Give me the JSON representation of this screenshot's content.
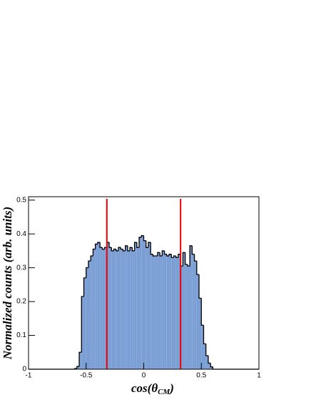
{
  "chart_data": {
    "type": "histogram",
    "x_label": {
      "main": "cos(θ",
      "sub": "CM",
      "close": ")"
    },
    "y_label": "Normalized counts (arb. units)",
    "bins": [
      -1,
      -0.98,
      -0.96,
      -0.94,
      -0.92,
      -0.9,
      -0.88,
      -0.86,
      -0.84,
      -0.82,
      -0.8,
      -0.78,
      -0.76,
      -0.74,
      -0.72,
      -0.7,
      -0.68,
      -0.66,
      -0.64,
      -0.62,
      -0.6,
      -0.58,
      -0.56,
      -0.54,
      -0.52,
      -0.5,
      -0.48,
      -0.46,
      -0.44,
      -0.42,
      -0.4,
      -0.38,
      -0.36,
      -0.34,
      -0.32,
      -0.3,
      -0.28,
      -0.26,
      -0.24,
      -0.22,
      -0.2,
      -0.18,
      -0.16,
      -0.14,
      -0.12,
      -0.1,
      -0.08,
      -0.06,
      -0.04,
      -0.02,
      0,
      0.02,
      0.04,
      0.06,
      0.08,
      0.1,
      0.12,
      0.14,
      0.16,
      0.18,
      0.2,
      0.22,
      0.24,
      0.26,
      0.28,
      0.3,
      0.32,
      0.34,
      0.36,
      0.38,
      0.4,
      0.42,
      0.44,
      0.46,
      0.48,
      0.5,
      0.52,
      0.54,
      0.56,
      0.58,
      0.6,
      0.62,
      0.64,
      0.66,
      0.68,
      0.7,
      0.72,
      0.74,
      0.76,
      0.78,
      0.8,
      0.82,
      0.84,
      0.86,
      0.88,
      0.9,
      0.92,
      0.94,
      0.96,
      0.98,
      1
    ],
    "values": [
      0,
      0,
      0,
      0,
      0,
      0,
      0,
      0,
      0,
      0,
      0,
      0,
      0,
      0,
      0,
      0,
      0,
      0,
      0,
      0,
      0.002,
      0.008,
      0.05,
      0.215,
      0.27,
      0.3,
      0.32,
      0.335,
      0.355,
      0.37,
      0.375,
      0.36,
      0.355,
      0.36,
      0.375,
      0.36,
      0.35,
      0.355,
      0.35,
      0.36,
      0.355,
      0.35,
      0.365,
      0.35,
      0.36,
      0.35,
      0.375,
      0.36,
      0.39,
      0.395,
      0.38,
      0.36,
      0.375,
      0.34,
      0.335,
      0.335,
      0.345,
      0.335,
      0.35,
      0.34,
      0.335,
      0.34,
      0.33,
      0.335,
      0.33,
      0.34,
      0.305,
      0.345,
      0.31,
      0.305,
      0.365,
      0.34,
      0.32,
      0.28,
      0.21,
      0.13,
      0.075,
      0.04,
      0.018,
      0.007,
      0,
      0,
      0,
      0,
      0,
      0,
      0,
      0,
      0,
      0,
      0,
      0,
      0,
      0,
      0,
      0,
      0,
      0,
      0,
      0
    ],
    "color": "#7b9fd4",
    "edge_color": "#000000",
    "markers": [
      -0.32,
      0.32
    ],
    "marker_color": "#ee0000",
    "xlim": [
      -1,
      1
    ],
    "xticks": [
      -1,
      -0.5,
      0,
      0.5,
      1
    ],
    "ylim": [
      0,
      0.51
    ],
    "yticks": [
      0,
      0.1,
      0.2,
      0.3,
      0.4,
      0.5
    ]
  }
}
